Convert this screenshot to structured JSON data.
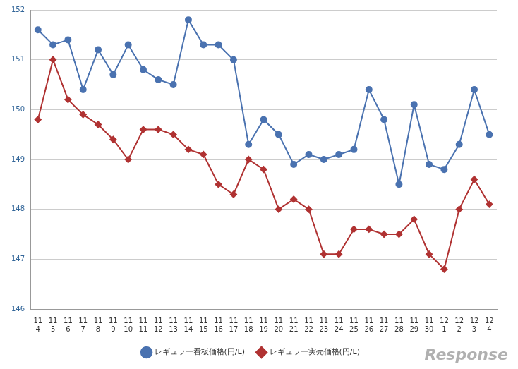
{
  "chart_data": {
    "type": "line",
    "categories": [
      "11\n4",
      "11\n5",
      "11\n6",
      "11\n7",
      "11\n8",
      "11\n9",
      "11\n10",
      "11\n11",
      "11\n12",
      "11\n13",
      "11\n14",
      "11\n15",
      "11\n16",
      "11\n17",
      "11\n18",
      "11\n19",
      "11\n20",
      "11\n21",
      "11\n22",
      "11\n23",
      "11\n24",
      "11\n25",
      "11\n26",
      "11\n27",
      "11\n28",
      "11\n29",
      "11\n30",
      "12\n1",
      "12\n2",
      "12\n3",
      "12\n4"
    ],
    "series": [
      {
        "name": "レギュラー看板価格(円/L)",
        "color": "#4a72b0",
        "marker": "circle",
        "line_style": "solid",
        "values": [
          151.6,
          151.3,
          151.4,
          150.4,
          151.2,
          150.7,
          151.3,
          150.8,
          150.6,
          150.5,
          151.8,
          151.3,
          151.3,
          151.0,
          149.3,
          149.8,
          149.5,
          148.9,
          149.1,
          149.0,
          149.1,
          149.2,
          150.4,
          149.8,
          148.5,
          150.1,
          148.9,
          148.8,
          149.3,
          150.4,
          149.5
        ]
      },
      {
        "name": "レギュラー実売価格(円/L)",
        "color": "#b03232",
        "marker": "diamond",
        "line_style": "solid",
        "values": [
          149.8,
          151.0,
          150.2,
          149.9,
          149.7,
          149.4,
          149.0,
          149.6,
          149.6,
          149.5,
          149.2,
          149.1,
          148.5,
          148.3,
          149.0,
          148.8,
          148.0,
          148.2,
          148.0,
          147.1,
          147.1,
          147.6,
          147.6,
          147.5,
          147.5,
          147.8,
          147.1,
          146.8,
          148.0,
          148.6,
          148.1
        ]
      }
    ],
    "ylim": [
      146,
      152
    ],
    "yticks": [
      146,
      147,
      148,
      149,
      150,
      151,
      152
    ],
    "grid": true,
    "legend": "bottom",
    "annotations": [
      "Response"
    ]
  }
}
